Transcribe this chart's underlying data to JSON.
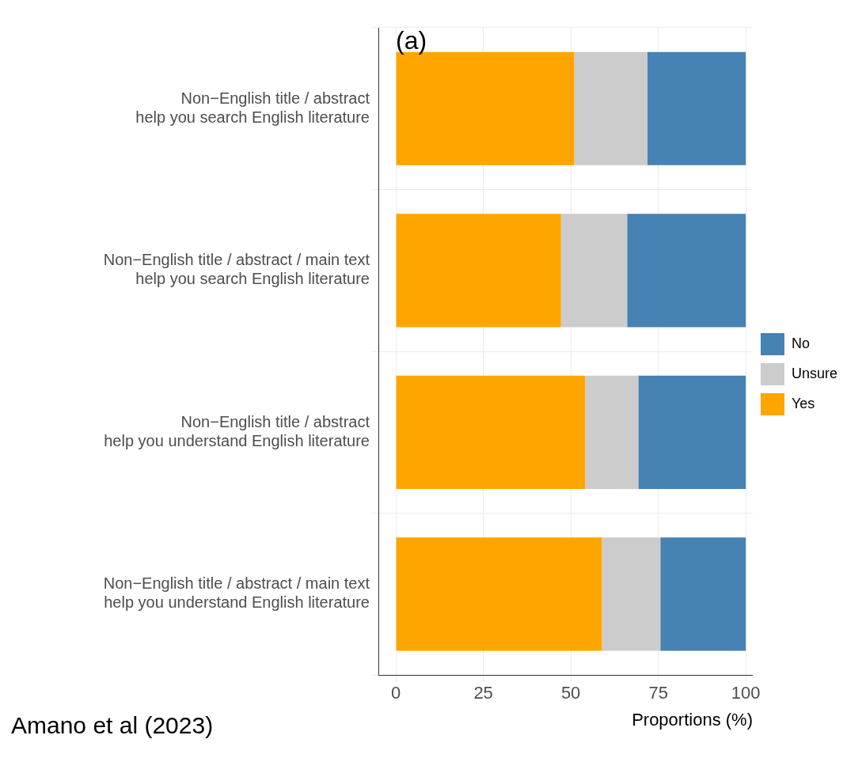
{
  "chart_data": {
    "type": "bar",
    "orientation": "horizontal",
    "stacked": true,
    "categories": [
      "Non−English title / abstract\nhelp you search English literature",
      "Non−English title / abstract / main text\nhelp you search English literature",
      "Non−English title / abstract\nhelp you understand English literature",
      "Non−English title / abstract / main text\nhelp you understand English literature"
    ],
    "series": [
      {
        "name": "Yes",
        "color": "#ffa500",
        "values": [
          51.0,
          47.2,
          54.1,
          58.9
        ]
      },
      {
        "name": "Unsure",
        "color": "#cccccc",
        "values": [
          20.9,
          18.9,
          15.2,
          16.7
        ]
      },
      {
        "name": "No",
        "color": "#4682b4",
        "values": [
          28.1,
          33.9,
          30.7,
          24.4
        ]
      }
    ],
    "xlabel": "Proportions (%)",
    "xlim": [
      -5,
      102
    ],
    "xticks": [
      0,
      25,
      50,
      75,
      100
    ],
    "grid": true,
    "legend": "right",
    "annotations": [
      "(a)",
      "Amano et al (2023)"
    ]
  }
}
